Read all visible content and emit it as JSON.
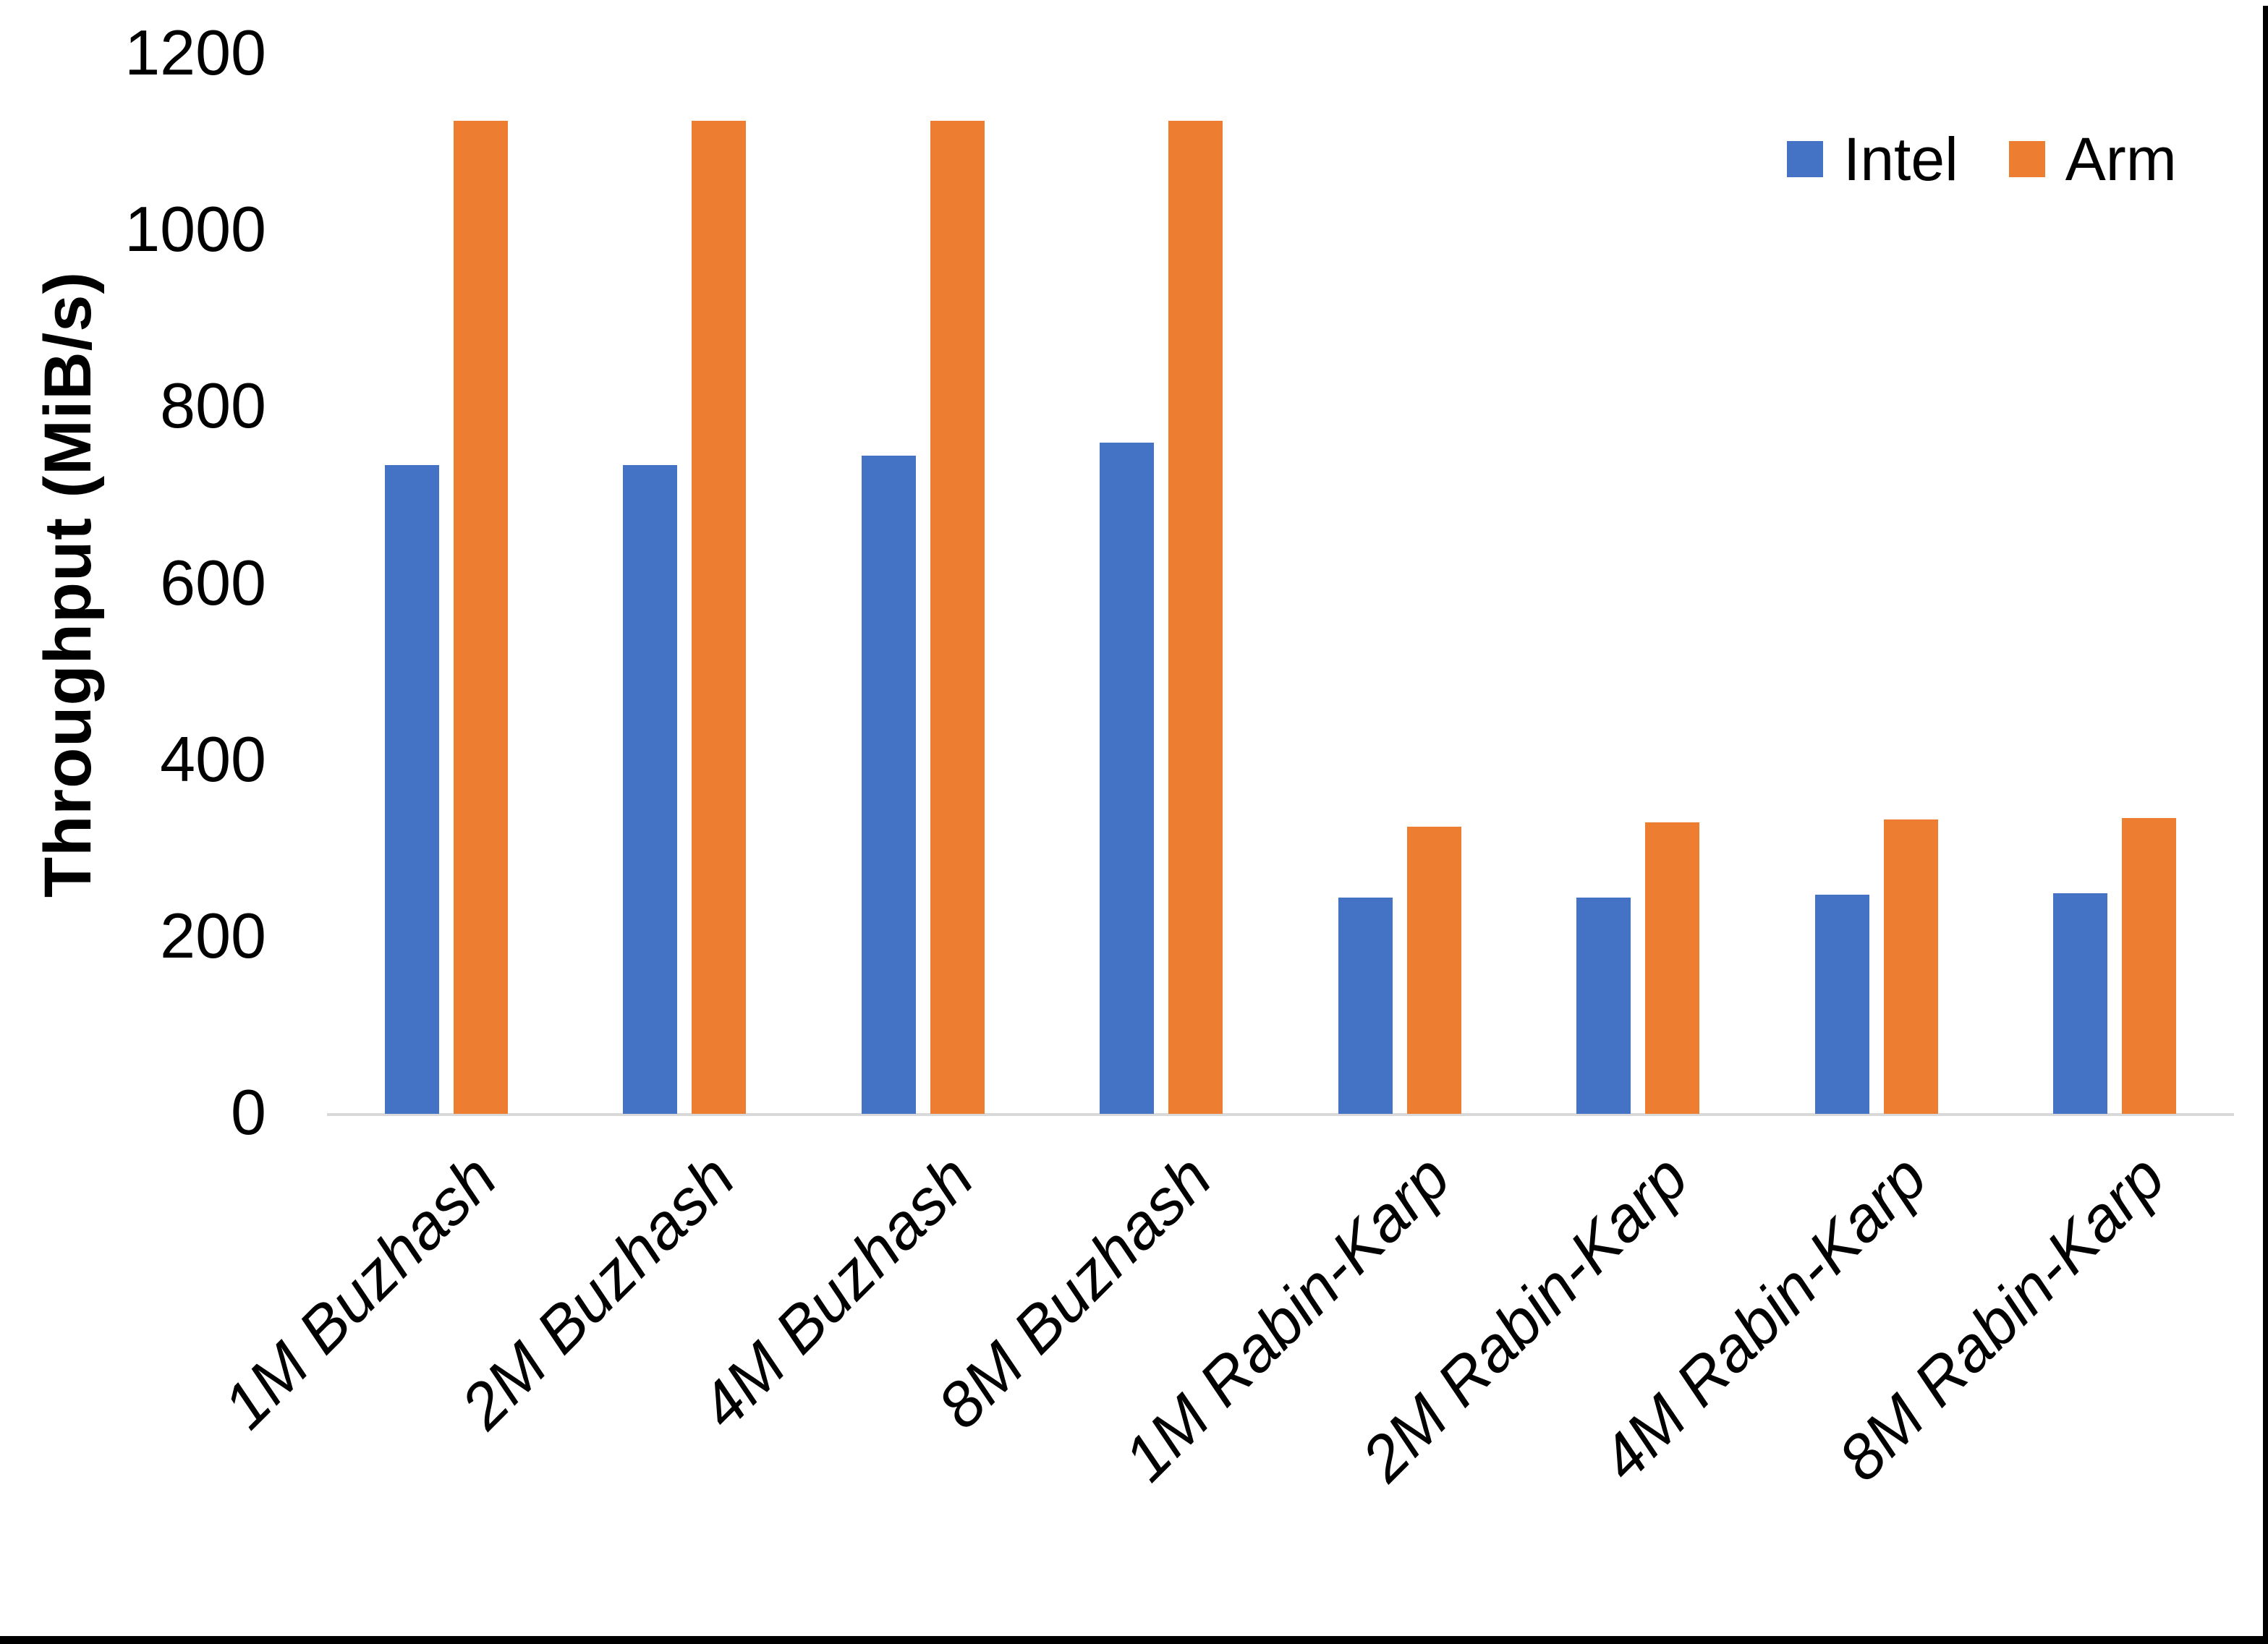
{
  "chart_data": {
    "type": "bar",
    "title": "",
    "xlabel": "",
    "ylabel": "Throughput (MiB/s)",
    "ylim": [
      0,
      1200
    ],
    "yticks": [
      0,
      200,
      400,
      600,
      800,
      1000,
      1200
    ],
    "grid": false,
    "legend_position": "top-right",
    "categories": [
      "1M Buzhash",
      "2M Buzhash",
      "4M Buzhash",
      "8M Buzhash",
      "1M Rabin-Karp",
      "2M Rabin-Karp",
      "4M Rabin-Karp",
      "8M Rabin-Karp"
    ],
    "series": [
      {
        "name": "Intel",
        "color": "#4472C4",
        "values": [
          735,
          735,
          745,
          760,
          245,
          245,
          248,
          250
        ]
      },
      {
        "name": "Arm",
        "color": "#ED7D31",
        "values": [
          1125,
          1125,
          1125,
          1125,
          325,
          330,
          333,
          335
        ]
      }
    ]
  },
  "axis": {
    "line_color": "#D9D9D9",
    "text_color": "#000000"
  },
  "frame": {
    "border_color": "#000000"
  }
}
